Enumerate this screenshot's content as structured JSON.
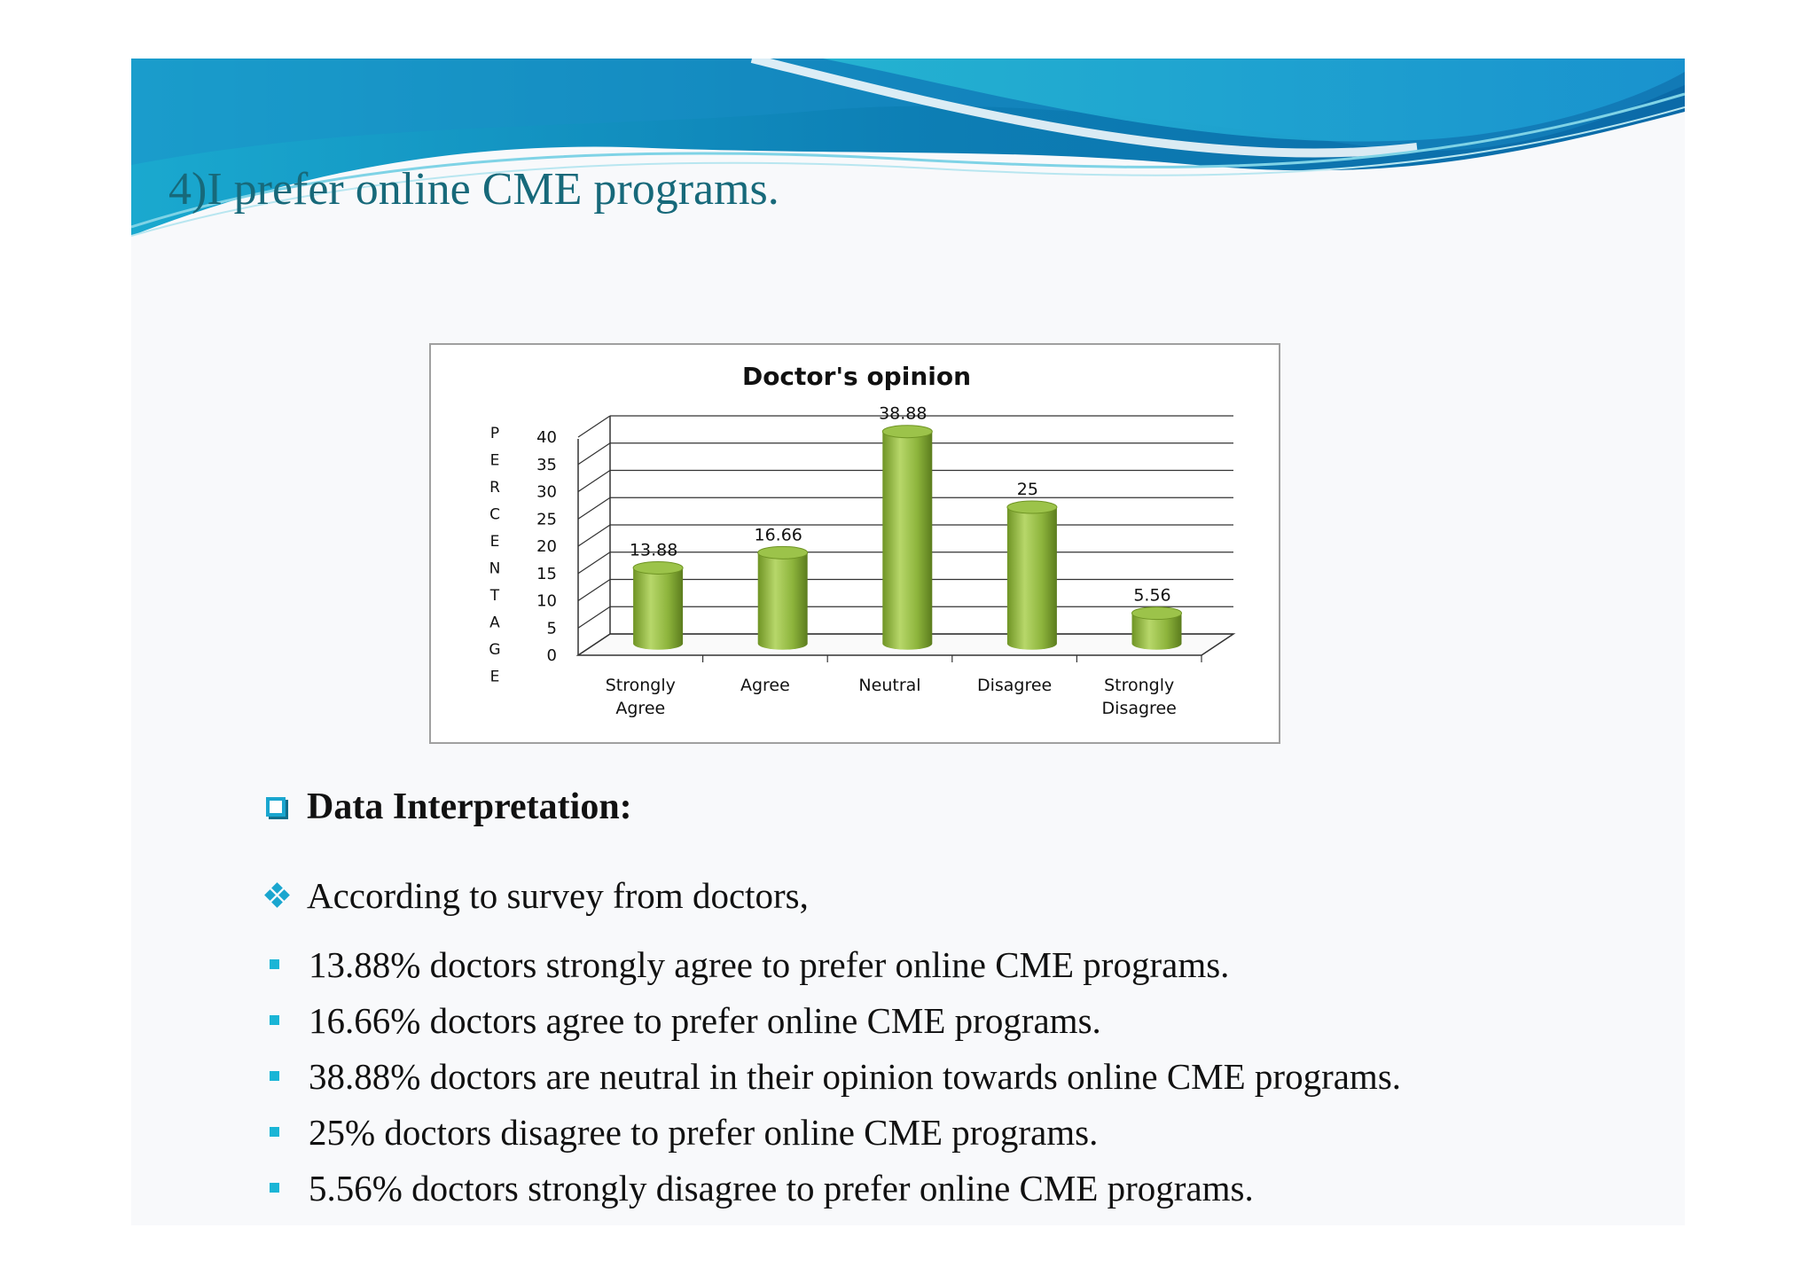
{
  "slide": {
    "title": "4)I prefer online CME programs.",
    "colors": {
      "title": "#17697a",
      "accent": "#1aa6cf",
      "bar": "#8db43c"
    }
  },
  "chart_data": {
    "type": "bar",
    "title": "Doctor's opinion",
    "ylabel": "PERCENTAGE",
    "xlabel": "",
    "categories": [
      "Strongly Agree",
      "Agree",
      "Neutral",
      "Disagree",
      "Strongly Disagree"
    ],
    "values": [
      13.88,
      16.66,
      38.88,
      25,
      5.56
    ],
    "value_labels": [
      "13.88",
      "16.66",
      "38.88",
      "25",
      "5.56"
    ],
    "ylim": [
      0,
      40
    ],
    "yticks": [
      0,
      5,
      10,
      15,
      20,
      25,
      30,
      35,
      40
    ],
    "grid": true,
    "style": "3d cylinder",
    "legend": "none"
  },
  "interpretation": {
    "heading": "Data Interpretation:",
    "intro": "According to survey from doctors,",
    "bullets": [
      "13.88% doctors strongly agree to prefer online CME programs.",
      "16.66% doctors agree to prefer online CME programs.",
      "38.88% doctors are neutral in their opinion towards online CME programs.",
      "25% doctors disagree to prefer online CME programs.",
      "5.56% doctors strongly disagree to prefer online CME programs."
    ]
  }
}
